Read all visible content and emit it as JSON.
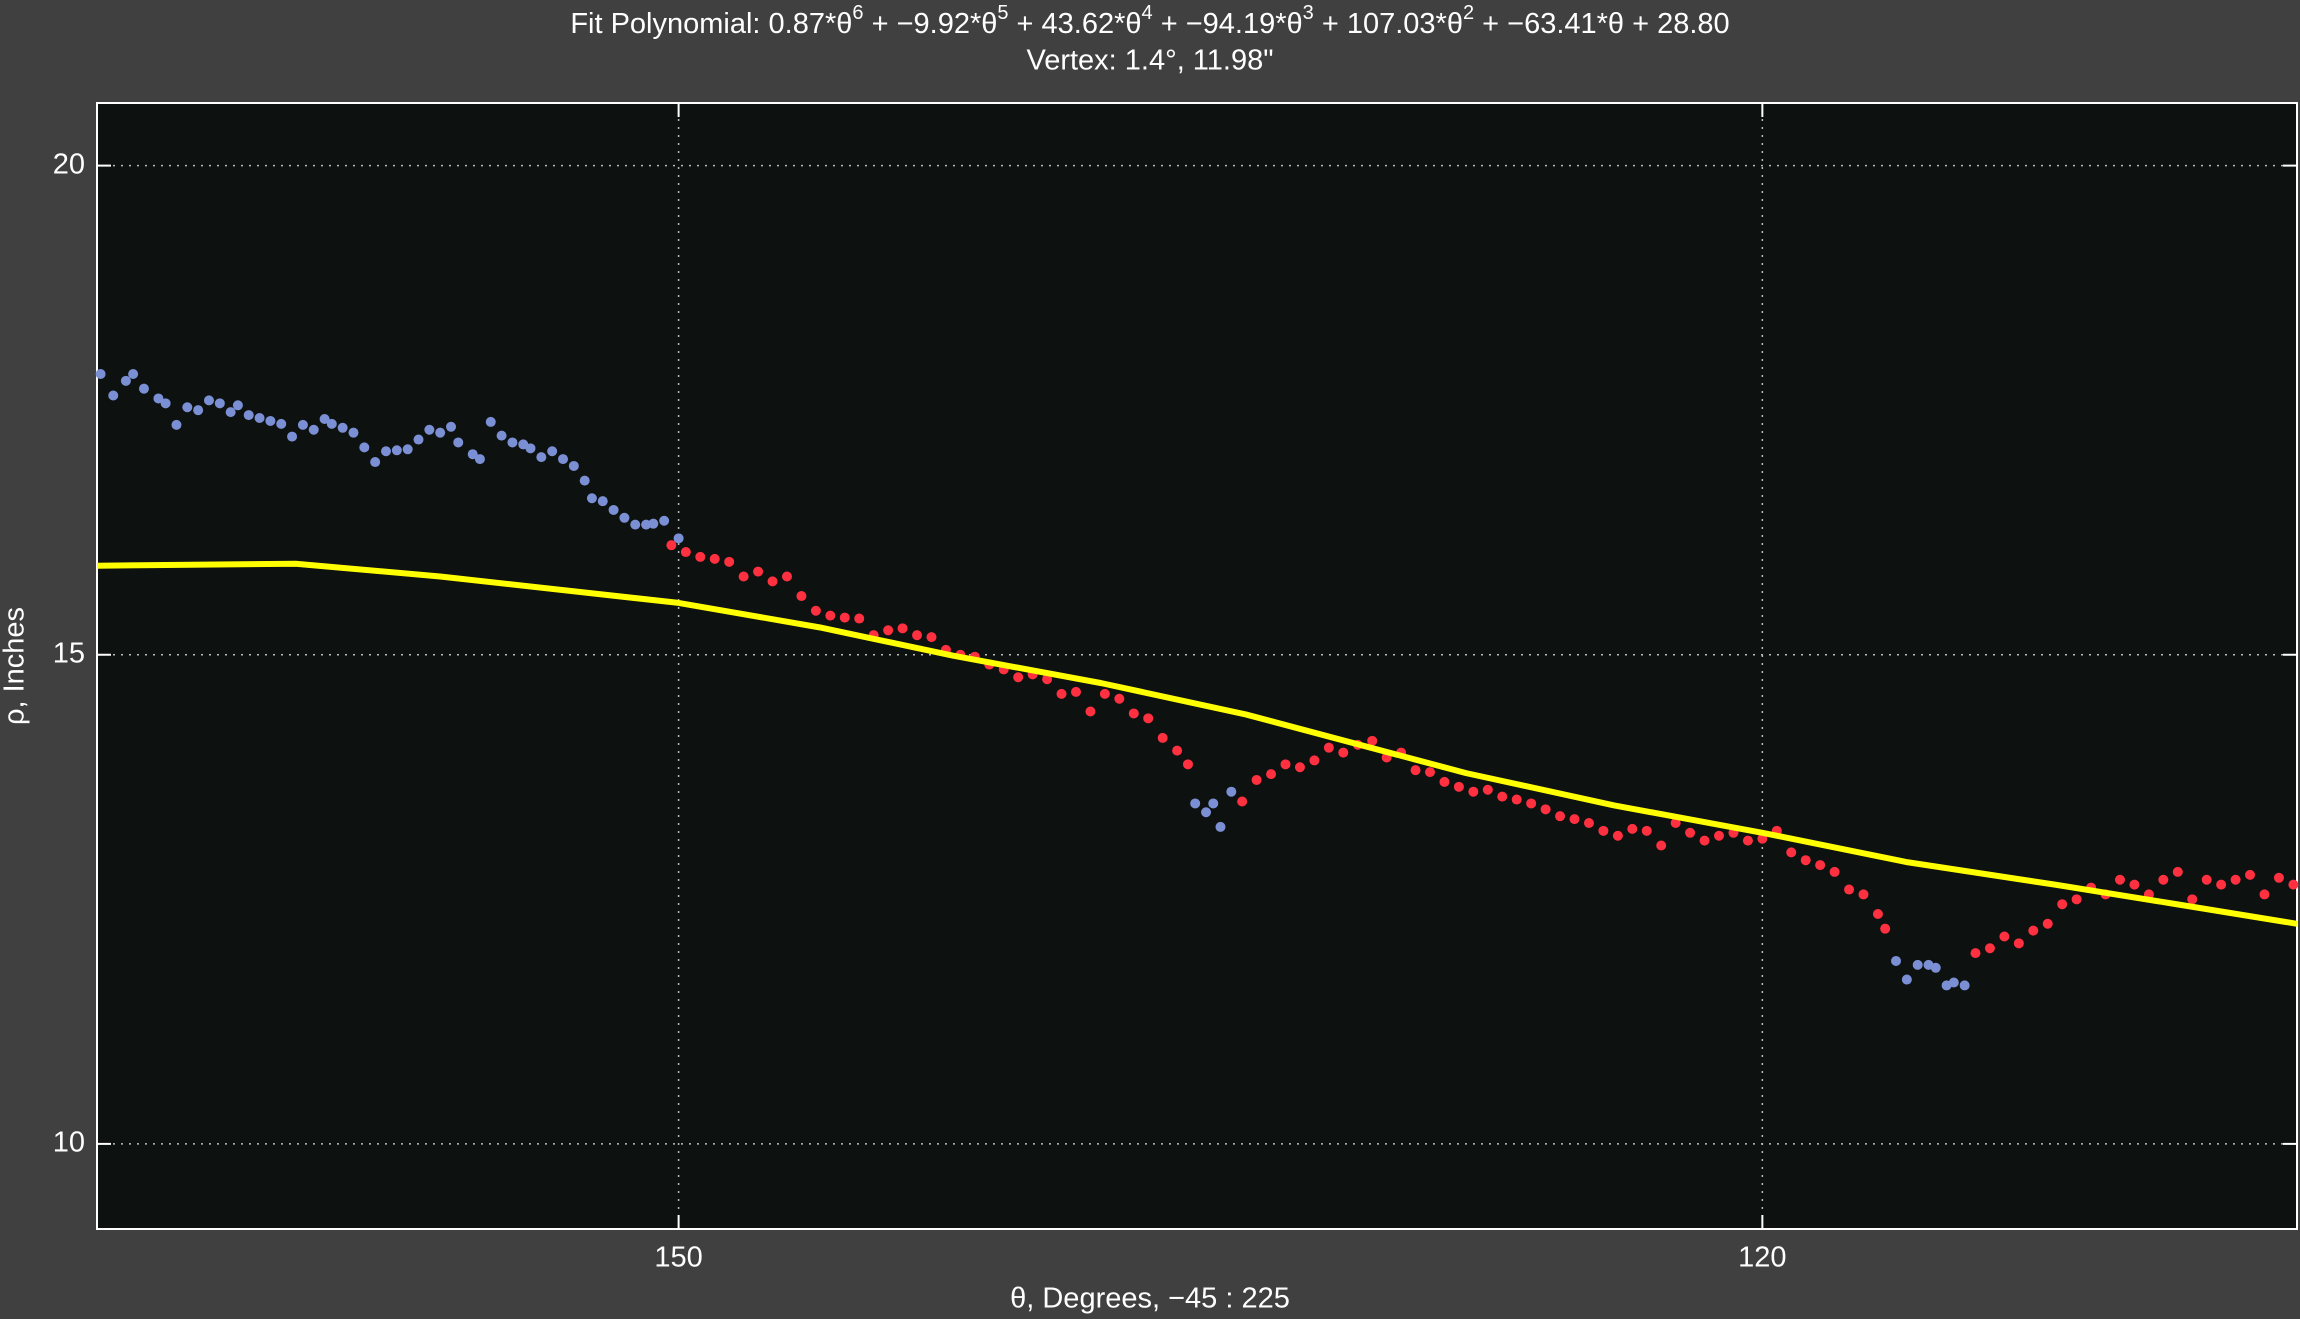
{
  "chart_data": {
    "type": "scatter",
    "title_parts": [
      {
        "text": "Fit Polynomial: 0.87*θ",
        "sup": "6"
      },
      {
        "text": " + −9.92*θ",
        "sup": "5"
      },
      {
        "text": " + 43.62*θ",
        "sup": "4"
      },
      {
        "text": " + −94.19*θ",
        "sup": "3"
      },
      {
        "text": " + 107.03*θ",
        "sup": "2"
      },
      {
        "text": " + −63.41*θ + 28.80"
      }
    ],
    "subtitle": "Vertex: 1.4°, 11.98\"",
    "x_label": "θ, Degrees, −45 : 225",
    "y_label": "ρ, Inches",
    "xlim": [
      166.1,
      105.2
    ],
    "ylim": [
      9.13,
      20.64
    ],
    "xticks": [
      150,
      120
    ],
    "yticks": [
      10,
      15,
      20
    ],
    "grid": true,
    "series": [
      {
        "color": "#7b8fd4",
        "x": [
          166.0,
          165.65,
          165.3,
          165.1,
          164.8,
          164.4,
          164.2,
          163.9,
          163.6,
          163.3,
          163.0,
          162.7,
          162.4,
          162.2,
          161.9,
          161.6,
          161.3,
          161.0,
          160.7,
          160.4,
          160.1,
          159.8,
          159.6,
          159.3,
          159.0,
          158.7,
          158.4,
          158.1,
          157.8,
          157.5,
          157.2,
          156.9,
          156.6,
          156.3,
          156.1,
          155.7,
          155.5,
          155.2,
          154.9,
          154.6,
          154.3,
          154.1,
          153.8,
          153.5,
          153.2,
          152.9,
          152.6,
          152.4,
          152.1,
          151.8,
          151.5,
          151.2,
          150.9,
          150.7,
          150.4,
          150.0,
          135.7,
          135.4,
          135.2,
          135.0,
          134.7,
          116.3,
          116.0,
          115.7,
          115.4,
          115.2,
          114.9,
          114.7,
          114.4
        ],
        "values": [
          17.87,
          17.65,
          17.8,
          17.87,
          17.72,
          17.62,
          17.57,
          17.35,
          17.53,
          17.5,
          17.6,
          17.57,
          17.48,
          17.55,
          17.45,
          17.42,
          17.39,
          17.36,
          17.23,
          17.35,
          17.3,
          17.41,
          17.36,
          17.32,
          17.27,
          17.12,
          16.97,
          17.08,
          17.09,
          17.1,
          17.2,
          17.3,
          17.27,
          17.33,
          17.17,
          17.05,
          17.0,
          17.38,
          17.24,
          17.17,
          17.15,
          17.11,
          17.02,
          17.08,
          17.0,
          16.93,
          16.78,
          16.6,
          16.57,
          16.48,
          16.4,
          16.33,
          16.33,
          16.34,
          16.37,
          16.19,
          13.48,
          13.39,
          13.48,
          13.24,
          13.6,
          11.87,
          11.68,
          11.83,
          11.83,
          11.8,
          11.62,
          11.65,
          11.62
        ]
      },
      {
        "color": "#ff3040",
        "x": [
          150.2,
          149.8,
          149.4,
          149.0,
          148.6,
          148.2,
          147.8,
          147.4,
          147.0,
          146.6,
          146.2,
          145.8,
          145.4,
          145.0,
          144.6,
          144.2,
          143.8,
          143.4,
          143.0,
          142.6,
          142.2,
          141.8,
          141.4,
          141.0,
          140.6,
          140.2,
          139.8,
          139.4,
          139.0,
          138.6,
          138.2,
          137.8,
          137.4,
          137.0,
          136.6,
          136.2,
          135.9,
          134.4,
          134.0,
          133.6,
          133.2,
          132.8,
          132.4,
          132.0,
          131.6,
          131.2,
          130.8,
          130.4,
          130.0,
          129.6,
          129.2,
          128.8,
          128.4,
          128.0,
          127.6,
          127.2,
          126.8,
          126.4,
          126.0,
          125.6,
          125.2,
          124.8,
          124.4,
          124.0,
          123.6,
          123.2,
          122.8,
          122.4,
          122.0,
          121.6,
          121.2,
          120.8,
          120.4,
          120.0,
          119.6,
          119.2,
          118.8,
          118.4,
          118.0,
          117.6,
          117.2,
          116.8,
          116.6,
          114.1,
          113.7,
          113.3,
          112.9,
          112.5,
          112.1,
          111.7,
          111.3,
          110.9,
          110.5,
          110.1,
          109.7,
          109.3,
          108.9,
          108.5,
          108.1,
          107.7,
          107.3,
          106.9,
          106.5,
          106.1,
          105.7,
          105.3
        ],
        "values": [
          16.12,
          16.05,
          16.0,
          15.98,
          15.95,
          15.8,
          15.85,
          15.75,
          15.8,
          15.6,
          15.45,
          15.4,
          15.38,
          15.37,
          15.2,
          15.25,
          15.27,
          15.2,
          15.18,
          15.05,
          15.0,
          14.98,
          14.9,
          14.85,
          14.77,
          14.8,
          14.75,
          14.6,
          14.62,
          14.42,
          14.6,
          14.55,
          14.4,
          14.35,
          14.15,
          14.02,
          13.88,
          13.5,
          13.72,
          13.78,
          13.88,
          13.85,
          13.92,
          14.05,
          14.0,
          14.08,
          14.12,
          13.95,
          14.0,
          13.82,
          13.8,
          13.7,
          13.65,
          13.6,
          13.62,
          13.55,
          13.52,
          13.48,
          13.42,
          13.35,
          13.32,
          13.28,
          13.2,
          13.15,
          13.22,
          13.2,
          13.05,
          13.28,
          13.18,
          13.1,
          13.15,
          13.18,
          13.1,
          13.12,
          13.2,
          12.98,
          12.9,
          12.85,
          12.78,
          12.6,
          12.55,
          12.35,
          12.2,
          11.95,
          12.0,
          12.12,
          12.05,
          12.18,
          12.25,
          12.45,
          12.5,
          12.62,
          12.55,
          12.7,
          12.65,
          12.55,
          12.7,
          12.78,
          12.5,
          12.7,
          12.65,
          12.7,
          12.75,
          12.55,
          12.72,
          12.65
        ]
      },
      {
        "type": "line",
        "color": "#ffff00",
        "x": [
          166.1,
          160.6,
          156.6,
          150.0,
          146.1,
          142.4,
          138.3,
          134.3,
          128.2,
          124.1,
          120.0,
          116.0,
          111.9,
          108.7,
          105.2
        ],
        "values": [
          15.91,
          15.93,
          15.8,
          15.53,
          15.28,
          14.99,
          14.71,
          14.39,
          13.79,
          13.46,
          13.18,
          12.88,
          12.65,
          12.46,
          12.25
        ]
      }
    ]
  }
}
